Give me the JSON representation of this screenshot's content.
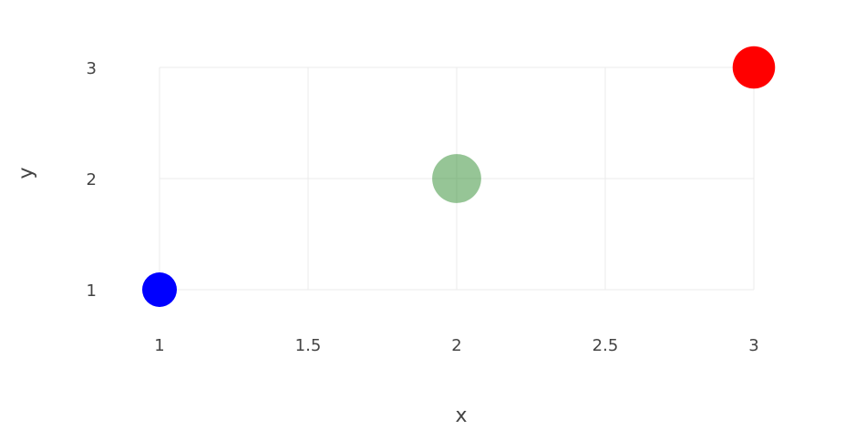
{
  "chart_data": {
    "type": "scatter",
    "xlabel": "x",
    "ylabel": "y",
    "xlim": [
      1,
      3
    ],
    "ylim": [
      1,
      3
    ],
    "x_ticks": [
      1,
      1.5,
      2,
      2.5,
      3
    ],
    "x_tick_labels": [
      "1",
      "1.5",
      "2",
      "2.5",
      "3"
    ],
    "y_ticks": [
      1,
      2,
      3
    ],
    "y_tick_labels": [
      "1",
      "2",
      "3"
    ],
    "grid": true,
    "legend": "none",
    "points": [
      {
        "x": 1,
        "y": 1,
        "size": 1,
        "color": "#0000ff",
        "opacity": 1
      },
      {
        "x": 2,
        "y": 2,
        "size": 2,
        "color": "#2e8b2e",
        "opacity": 0.5
      },
      {
        "x": 3,
        "y": 3,
        "size": 1.5,
        "color": "#ff0000",
        "opacity": 1
      }
    ]
  }
}
